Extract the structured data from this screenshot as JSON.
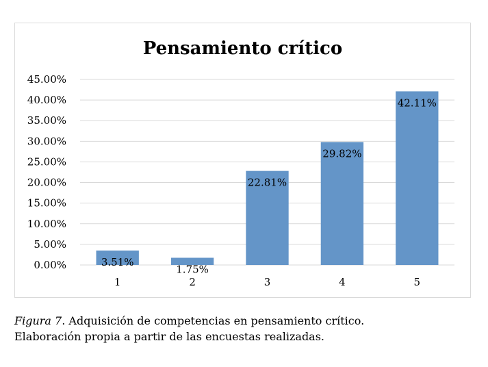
{
  "chart_data": {
    "type": "bar",
    "title": "Pensamiento crítico",
    "categories": [
      "1",
      "2",
      "3",
      "4",
      "5"
    ],
    "values": [
      3.51,
      1.75,
      22.81,
      29.82,
      42.11
    ],
    "value_labels": [
      "3.51%",
      "1.75%",
      "22.81%",
      "29.82%",
      "42.11%"
    ],
    "ylim": [
      0,
      45
    ],
    "yticks": [
      "0.00%",
      "5.00%",
      "10.00%",
      "15.00%",
      "20.00%",
      "25.00%",
      "30.00%",
      "35.00%",
      "40.00%",
      "45.00%"
    ],
    "bar_color": "#6495c8",
    "grid": true,
    "legend": "none"
  },
  "caption": {
    "figure_label": "Figura 7",
    "line1_rest": ". Adquisición de competencias en pensamiento crítico.",
    "line2": "Elaboración propia a partir de las encuestas realizadas."
  }
}
